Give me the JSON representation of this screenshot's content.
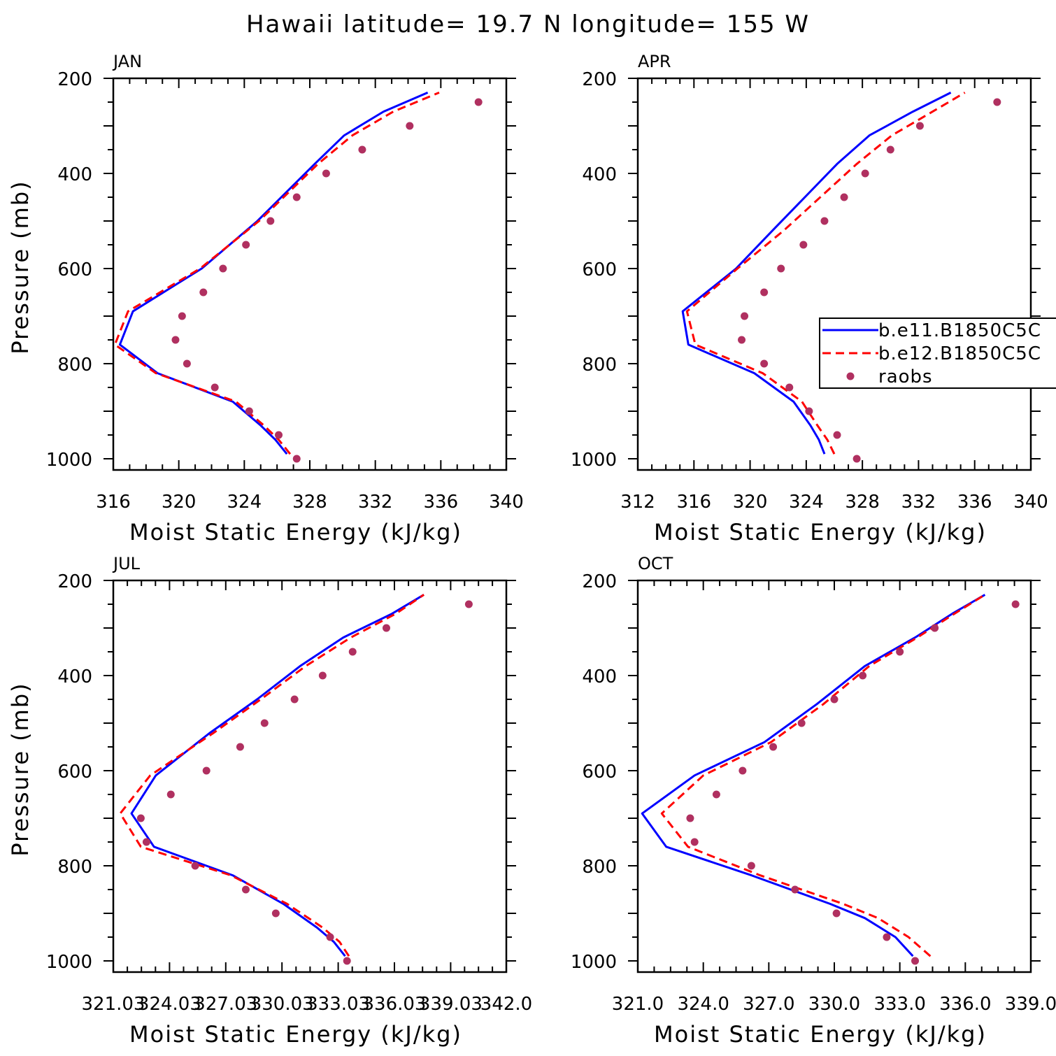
{
  "figure": {
    "title": "Hawaii  latitude= 19.7 N longitude= 155 W"
  },
  "legend": {
    "entries": [
      "b.e11.B1850C5C",
      "b.e12.B1850C5C",
      "raobs"
    ]
  },
  "colors": {
    "b11": "#0000ff",
    "b12": "#ff0000",
    "raobs": "#b03060"
  },
  "chart_data": [
    {
      "type": "line",
      "panel": "JAN",
      "xlabel": "Moist Static Energy (kJ/kg)",
      "ylabel": "Pressure (mb)",
      "xlim": [
        316,
        340
      ],
      "ylim": [
        200,
        1000
      ],
      "y_inverted": true,
      "xticks": [
        316,
        320,
        324,
        328,
        332,
        336,
        340
      ],
      "xtick_labels": [
        "316",
        "320",
        "324",
        "328",
        "332",
        "336",
        "340"
      ],
      "yticks": [
        200,
        400,
        600,
        800,
        1000
      ],
      "ytick_labels": [
        "200",
        "400",
        "600",
        "800",
        "1000"
      ],
      "series": [
        {
          "key": "b11",
          "style": "solid",
          "p": [
            990,
            960,
            930,
            880,
            820,
            760,
            690,
            600,
            500,
            380,
            320,
            270,
            230
          ],
          "mse": [
            326.6,
            325.9,
            325.0,
            323.3,
            318.7,
            316.4,
            317.2,
            321.4,
            324.8,
            328.3,
            330.1,
            332.5,
            335.2
          ]
        },
        {
          "key": "b12",
          "style": "dashed",
          "p": [
            990,
            960,
            930,
            880,
            820,
            760,
            690,
            600,
            500,
            380,
            320,
            270,
            230
          ],
          "mse": [
            326.8,
            326.1,
            325.2,
            323.5,
            318.6,
            316.1,
            316.9,
            321.3,
            324.9,
            328.5,
            330.6,
            333.1,
            335.9
          ]
        },
        {
          "key": "raobs",
          "style": "points",
          "p": [
            1000,
            950,
            900,
            850,
            800,
            750,
            700,
            650,
            600,
            550,
            500,
            450,
            400,
            350,
            300,
            250
          ],
          "mse": [
            327.2,
            326.1,
            324.3,
            322.2,
            320.5,
            319.8,
            320.2,
            321.5,
            322.7,
            324.1,
            325.6,
            327.2,
            329.0,
            331.2,
            334.1,
            338.3
          ]
        }
      ]
    },
    {
      "type": "line",
      "panel": "APR",
      "xlabel": "Moist Static Energy (kJ/kg)",
      "ylabel": "",
      "xlim": [
        312,
        340
      ],
      "ylim": [
        200,
        1000
      ],
      "y_inverted": true,
      "xticks": [
        312,
        316,
        320,
        324,
        328,
        332,
        336,
        340
      ],
      "xtick_labels": [
        "312",
        "316",
        "320",
        "324",
        "328",
        "332",
        "336",
        "340"
      ],
      "yticks": [
        200,
        400,
        600,
        800,
        1000
      ],
      "ytick_labels": [
        "200",
        "400",
        "600",
        "800",
        "1000"
      ],
      "series": [
        {
          "key": "b11",
          "style": "solid",
          "p": [
            990,
            960,
            930,
            880,
            820,
            760,
            690,
            600,
            520,
            380,
            320,
            270,
            230
          ],
          "mse": [
            325.3,
            324.9,
            324.3,
            323.1,
            320.3,
            315.6,
            315.2,
            319.0,
            321.6,
            326.2,
            328.5,
            331.6,
            334.3
          ]
        },
        {
          "key": "b12",
          "style": "dashed",
          "p": [
            990,
            960,
            930,
            880,
            820,
            760,
            690,
            600,
            520,
            380,
            320,
            270,
            230
          ],
          "mse": [
            326.0,
            325.5,
            324.8,
            323.7,
            320.9,
            316.1,
            315.5,
            319.1,
            322.4,
            327.6,
            330.1,
            333.0,
            335.3
          ]
        },
        {
          "key": "raobs",
          "style": "points",
          "p": [
            1000,
            950,
            900,
            850,
            800,
            750,
            700,
            650,
            600,
            550,
            500,
            450,
            400,
            350,
            300,
            250
          ],
          "mse": [
            327.6,
            326.2,
            324.2,
            322.8,
            321.0,
            319.4,
            319.6,
            321.0,
            322.2,
            323.8,
            325.3,
            326.7,
            328.2,
            330.0,
            332.1,
            337.6
          ]
        }
      ]
    },
    {
      "type": "line",
      "panel": "JUL",
      "xlabel": "Moist Static Energy (kJ/kg)",
      "ylabel": "Pressure (mb)",
      "xlim": [
        321.03,
        342.0
      ],
      "ylim": [
        200,
        1000
      ],
      "y_inverted": true,
      "xticks": [
        321.03,
        324.03,
        327.03,
        330.03,
        333.03,
        336.03,
        339.03,
        342.0
      ],
      "xtick_labels": [
        "321.03",
        "324.03",
        "327.03",
        "330.03",
        "333.03",
        "336.03",
        "339.03",
        "342.0"
      ],
      "yticks": [
        200,
        400,
        600,
        800,
        1000
      ],
      "ytick_labels": [
        "200",
        "400",
        "600",
        "800",
        "1000"
      ],
      "series": [
        {
          "key": "b11",
          "style": "solid",
          "p": [
            990,
            960,
            930,
            880,
            820,
            760,
            690,
            610,
            520,
            450,
            380,
            320,
            270,
            230
          ],
          "mse": [
            333.4,
            332.8,
            331.9,
            330.1,
            327.4,
            323.2,
            322.0,
            323.3,
            326.2,
            328.7,
            331.0,
            333.3,
            335.9,
            337.6
          ]
        },
        {
          "key": "b12",
          "style": "dashed",
          "p": [
            990,
            960,
            930,
            880,
            820,
            760,
            690,
            610,
            520,
            450,
            380,
            320,
            270,
            230
          ],
          "mse": [
            333.6,
            333.1,
            332.2,
            330.3,
            327.3,
            322.5,
            321.4,
            323.0,
            326.4,
            328.9,
            331.3,
            333.7,
            336.1,
            337.6
          ]
        },
        {
          "key": "raobs",
          "style": "points",
          "p": [
            1000,
            950,
            900,
            850,
            800,
            750,
            700,
            650,
            600,
            550,
            500,
            450,
            400,
            350,
            300,
            250
          ],
          "mse": [
            333.5,
            332.6,
            329.7,
            328.1,
            325.4,
            322.8,
            322.5,
            324.1,
            326.0,
            327.8,
            329.1,
            330.7,
            332.2,
            333.8,
            335.6,
            340.0
          ]
        }
      ]
    },
    {
      "type": "line",
      "panel": "OCT",
      "xlabel": "Moist Static Energy (kJ/kg)",
      "ylabel": "",
      "xlim": [
        321.0,
        339.0
      ],
      "ylim": [
        200,
        1000
      ],
      "y_inverted": true,
      "xticks": [
        321.0,
        324.0,
        327.0,
        330.0,
        333.0,
        336.0,
        339.0
      ],
      "xtick_labels": [
        "321.0",
        "324.0",
        "327.0",
        "330.0",
        "333.0",
        "336.0",
        "339.0"
      ],
      "yticks": [
        200,
        400,
        600,
        800,
        1000
      ],
      "ytick_labels": [
        "200",
        "400",
        "600",
        "800",
        "1000"
      ],
      "series": [
        {
          "key": "b11",
          "style": "solid",
          "p": [
            990,
            950,
            910,
            880,
            820,
            760,
            690,
            610,
            540,
            460,
            380,
            320,
            270,
            230
          ],
          "mse": [
            333.6,
            332.8,
            331.4,
            329.8,
            326.2,
            322.3,
            321.2,
            323.6,
            326.8,
            329.2,
            331.4,
            333.7,
            335.4,
            336.9
          ]
        },
        {
          "key": "b12",
          "style": "dashed",
          "p": [
            990,
            950,
            910,
            880,
            820,
            760,
            690,
            610,
            540,
            460,
            380,
            320,
            270,
            230
          ],
          "mse": [
            334.4,
            333.4,
            332.0,
            330.4,
            326.6,
            323.3,
            322.1,
            324.0,
            327.1,
            329.5,
            331.6,
            333.8,
            335.5,
            336.9
          ]
        },
        {
          "key": "raobs",
          "style": "points",
          "p": [
            1000,
            950,
            900,
            850,
            800,
            750,
            700,
            650,
            600,
            550,
            500,
            450,
            400,
            350,
            300,
            250
          ],
          "mse": [
            333.7,
            332.4,
            330.1,
            328.2,
            326.2,
            323.6,
            323.4,
            324.6,
            325.8,
            327.2,
            328.5,
            330.0,
            331.3,
            333.0,
            334.6,
            338.3
          ]
        }
      ]
    }
  ]
}
